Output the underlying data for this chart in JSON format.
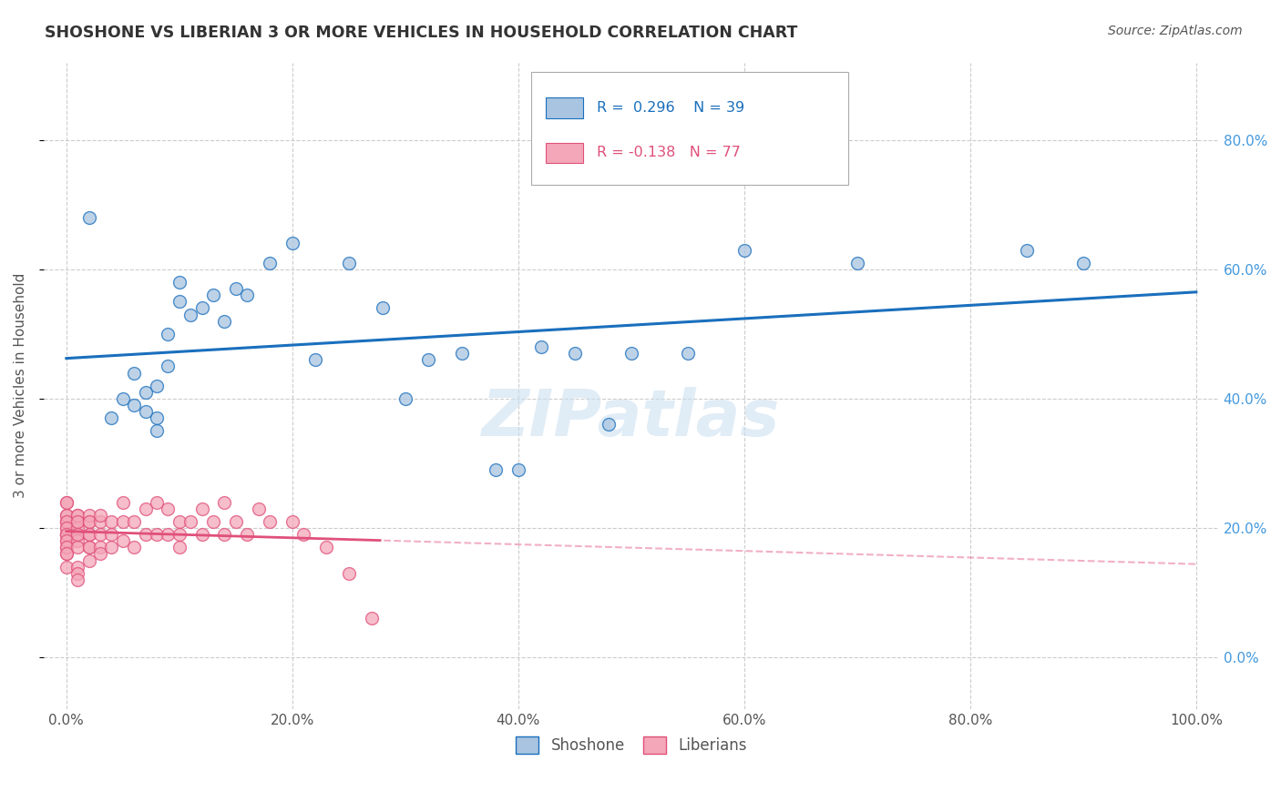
{
  "title": "SHOSHONE VS LIBERIAN 3 OR MORE VEHICLES IN HOUSEHOLD CORRELATION CHART",
  "source": "Source: ZipAtlas.com",
  "ylabel": "3 or more Vehicles in Household",
  "legend_labels": [
    "Shoshone",
    "Liberians"
  ],
  "shoshone_color": "#a8c4e0",
  "liberian_color": "#f4a7b9",
  "shoshone_line_color": "#1a6fbd",
  "liberian_line_color": "#e0507a",
  "R_shoshone": 0.296,
  "N_shoshone": 39,
  "R_liberian": -0.138,
  "N_liberian": 77,
  "watermark": "ZIPatlas",
  "background_color": "#ffffff",
  "shoshone_x": [
    0.02,
    0.04,
    0.05,
    0.06,
    0.06,
    0.07,
    0.07,
    0.08,
    0.08,
    0.08,
    0.09,
    0.09,
    0.1,
    0.1,
    0.11,
    0.12,
    0.13,
    0.14,
    0.15,
    0.16,
    0.18,
    0.2,
    0.22,
    0.25,
    0.28,
    0.3,
    0.32,
    0.35,
    0.38,
    0.4,
    0.42,
    0.45,
    0.48,
    0.5,
    0.55,
    0.6,
    0.7,
    0.85,
    0.9
  ],
  "shoshone_y": [
    0.68,
    0.37,
    0.4,
    0.39,
    0.44,
    0.41,
    0.38,
    0.42,
    0.37,
    0.35,
    0.45,
    0.5,
    0.55,
    0.58,
    0.53,
    0.54,
    0.56,
    0.52,
    0.57,
    0.56,
    0.61,
    0.64,
    0.46,
    0.61,
    0.54,
    0.4,
    0.46,
    0.47,
    0.29,
    0.29,
    0.48,
    0.47,
    0.36,
    0.47,
    0.47,
    0.63,
    0.61,
    0.63,
    0.61
  ],
  "liberian_x": [
    0.0,
    0.0,
    0.0,
    0.0,
    0.0,
    0.0,
    0.0,
    0.0,
    0.0,
    0.0,
    0.0,
    0.0,
    0.0,
    0.0,
    0.0,
    0.0,
    0.0,
    0.0,
    0.0,
    0.0,
    0.01,
    0.01,
    0.01,
    0.01,
    0.01,
    0.01,
    0.01,
    0.01,
    0.01,
    0.01,
    0.01,
    0.01,
    0.02,
    0.02,
    0.02,
    0.02,
    0.02,
    0.02,
    0.02,
    0.02,
    0.03,
    0.03,
    0.03,
    0.03,
    0.03,
    0.04,
    0.04,
    0.04,
    0.05,
    0.05,
    0.05,
    0.06,
    0.06,
    0.07,
    0.07,
    0.08,
    0.08,
    0.09,
    0.09,
    0.1,
    0.1,
    0.1,
    0.11,
    0.12,
    0.12,
    0.13,
    0.14,
    0.14,
    0.15,
    0.16,
    0.17,
    0.18,
    0.2,
    0.21,
    0.23,
    0.25,
    0.27
  ],
  "liberian_y": [
    0.21,
    0.24,
    0.19,
    0.22,
    0.17,
    0.19,
    0.2,
    0.16,
    0.21,
    0.18,
    0.19,
    0.14,
    0.24,
    0.22,
    0.21,
    0.2,
    0.19,
    0.18,
    0.17,
    0.16,
    0.22,
    0.21,
    0.19,
    0.2,
    0.18,
    0.17,
    0.22,
    0.21,
    0.19,
    0.14,
    0.13,
    0.12,
    0.21,
    0.19,
    0.17,
    0.15,
    0.22,
    0.21,
    0.19,
    0.17,
    0.21,
    0.19,
    0.17,
    0.22,
    0.16,
    0.21,
    0.19,
    0.17,
    0.24,
    0.21,
    0.18,
    0.21,
    0.17,
    0.23,
    0.19,
    0.24,
    0.19,
    0.23,
    0.19,
    0.21,
    0.19,
    0.17,
    0.21,
    0.23,
    0.19,
    0.21,
    0.24,
    0.19,
    0.21,
    0.19,
    0.23,
    0.21,
    0.21,
    0.19,
    0.17,
    0.13,
    0.06
  ],
  "x_tick_vals": [
    0.0,
    0.2,
    0.4,
    0.6,
    0.8,
    1.0
  ],
  "x_tick_labels": [
    "0.0%",
    "20.0%",
    "40.0%",
    "60.0%",
    "80.0%",
    "100.0%"
  ],
  "y_tick_vals": [
    0.0,
    0.2,
    0.4,
    0.6,
    0.8
  ],
  "y_tick_labels": [
    "0.0%",
    "20.0%",
    "40.0%",
    "60.0%",
    "80.0%"
  ],
  "xlim": [
    -0.02,
    1.02
  ],
  "ylim": [
    -0.08,
    0.92
  ]
}
